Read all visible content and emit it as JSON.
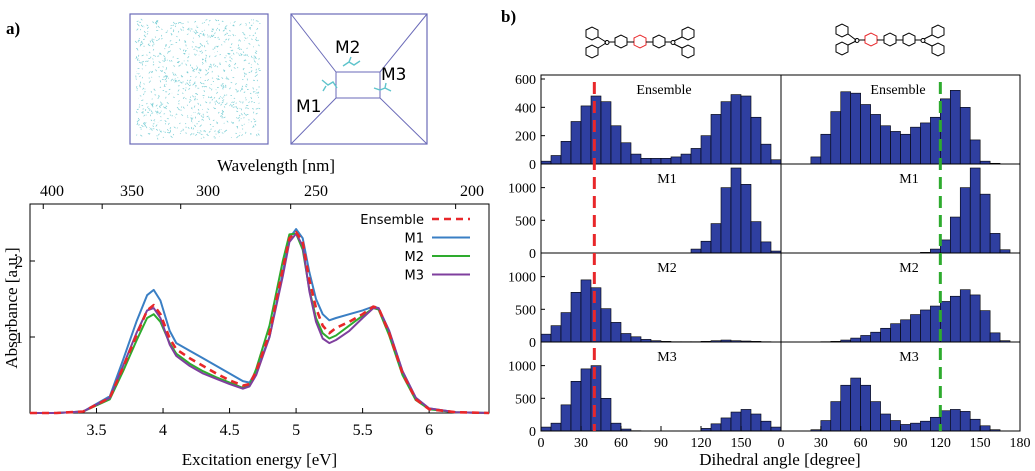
{
  "panel_a": {
    "label": "a)",
    "inset_box_labels": [
      "M1",
      "M2",
      "M3"
    ],
    "top_axis_label": "Wavelength [nm]",
    "top_ticks": [
      "400",
      "350",
      "300",
      "250",
      "200"
    ]
  },
  "panel_b": {
    "label": "b)",
    "xlabel": "Dihedral angle [degree]"
  },
  "colors": {
    "ensemble": "#e8272a",
    "m1": "#3a7fc4",
    "m2": "#2eab2e",
    "m3": "#7f3f9e",
    "bar_fill": "#2f3fa0",
    "bar_edge": "#000000",
    "ref_red": "#e8272a",
    "ref_green": "#2eab2e",
    "cube_dots": "#5fc4cc"
  },
  "chart_data": [
    {
      "type": "line",
      "title": "",
      "xlabel": "Excitation energy [eV]",
      "ylabel": "Absorbance [a.u.]",
      "xlim": [
        3.0,
        6.45
      ],
      "ylim": [
        0,
        2.75
      ],
      "x_ticks": [
        3.5,
        4,
        4.5,
        5,
        5.5,
        6
      ],
      "x_tick_labels": [
        "3.5",
        "4",
        "4.5",
        "5",
        "5.5",
        "6"
      ],
      "y_ticks": [
        1,
        2
      ],
      "y_tick_labels": [
        "1",
        "2"
      ],
      "legend": "top-right",
      "series": [
        {
          "name": "Ensemble",
          "style": "dashed",
          "x": [
            3.0,
            3.2,
            3.4,
            3.6,
            3.7,
            3.8,
            3.88,
            3.93,
            3.98,
            4.05,
            4.1,
            4.2,
            4.3,
            4.4,
            4.5,
            4.6,
            4.65,
            4.7,
            4.8,
            4.9,
            4.95,
            5.0,
            5.05,
            5.1,
            5.15,
            5.2,
            5.25,
            5.3,
            5.4,
            5.5,
            5.58,
            5.62,
            5.7,
            5.8,
            5.9,
            6.0,
            6.2,
            6.45
          ],
          "y": [
            0.0,
            0.0,
            0.02,
            0.2,
            0.6,
            1.02,
            1.35,
            1.42,
            1.3,
            0.98,
            0.84,
            0.72,
            0.62,
            0.52,
            0.43,
            0.36,
            0.38,
            0.55,
            1.05,
            1.9,
            2.3,
            2.38,
            2.25,
            1.75,
            1.38,
            1.15,
            1.05,
            1.12,
            1.2,
            1.3,
            1.4,
            1.38,
            1.05,
            0.52,
            0.18,
            0.05,
            0.01,
            0.0
          ]
        },
        {
          "name": "M1",
          "style": "solid",
          "x": [
            3.0,
            3.2,
            3.4,
            3.6,
            3.7,
            3.8,
            3.88,
            3.93,
            3.98,
            4.05,
            4.1,
            4.2,
            4.3,
            4.4,
            4.5,
            4.6,
            4.65,
            4.7,
            4.8,
            4.9,
            4.95,
            5.0,
            5.05,
            5.1,
            5.15,
            5.2,
            5.25,
            5.3,
            5.4,
            5.5,
            5.58,
            5.62,
            5.7,
            5.8,
            5.9,
            6.0,
            6.2,
            6.45
          ],
          "y": [
            0.0,
            0.0,
            0.02,
            0.22,
            0.7,
            1.2,
            1.55,
            1.62,
            1.48,
            1.08,
            0.92,
            0.82,
            0.72,
            0.62,
            0.52,
            0.42,
            0.4,
            0.55,
            1.0,
            1.85,
            2.3,
            2.42,
            2.3,
            1.85,
            1.5,
            1.3,
            1.22,
            1.25,
            1.3,
            1.35,
            1.4,
            1.38,
            1.08,
            0.55,
            0.2,
            0.06,
            0.01,
            0.0
          ]
        },
        {
          "name": "M2",
          "style": "solid",
          "x": [
            3.0,
            3.2,
            3.4,
            3.6,
            3.7,
            3.8,
            3.88,
            3.93,
            3.98,
            4.05,
            4.1,
            4.2,
            4.3,
            4.4,
            4.5,
            4.6,
            4.65,
            4.7,
            4.8,
            4.9,
            4.95,
            5.0,
            5.05,
            5.1,
            5.15,
            5.2,
            5.25,
            5.3,
            5.4,
            5.5,
            5.58,
            5.62,
            5.7,
            5.8,
            5.9,
            6.0,
            6.2,
            6.45
          ],
          "y": [
            0.0,
            0.0,
            0.02,
            0.18,
            0.55,
            0.95,
            1.25,
            1.3,
            1.2,
            0.92,
            0.78,
            0.65,
            0.55,
            0.47,
            0.4,
            0.33,
            0.36,
            0.58,
            1.15,
            2.0,
            2.35,
            2.36,
            2.15,
            1.62,
            1.25,
            1.05,
            0.98,
            1.02,
            1.15,
            1.28,
            1.38,
            1.36,
            1.02,
            0.5,
            0.17,
            0.05,
            0.01,
            0.0
          ]
        },
        {
          "name": "M3",
          "style": "solid",
          "x": [
            3.0,
            3.2,
            3.4,
            3.6,
            3.7,
            3.8,
            3.88,
            3.93,
            3.98,
            4.05,
            4.1,
            4.2,
            4.3,
            4.4,
            4.5,
            4.6,
            4.65,
            4.7,
            4.8,
            4.9,
            4.95,
            5.0,
            5.05,
            5.1,
            5.15,
            5.2,
            5.25,
            5.3,
            5.4,
            5.5,
            5.58,
            5.62,
            5.7,
            5.8,
            5.9,
            6.0,
            6.2,
            6.45
          ],
          "y": [
            0.0,
            0.0,
            0.02,
            0.2,
            0.62,
            1.05,
            1.35,
            1.38,
            1.25,
            0.9,
            0.75,
            0.62,
            0.52,
            0.45,
            0.38,
            0.32,
            0.35,
            0.5,
            1.0,
            1.8,
            2.25,
            2.36,
            2.2,
            1.6,
            1.2,
            0.98,
            0.92,
            0.96,
            1.08,
            1.25,
            1.38,
            1.38,
            1.08,
            0.55,
            0.2,
            0.06,
            0.01,
            0.0
          ]
        }
      ]
    },
    {
      "type": "bar",
      "title": "",
      "xlabel": "Dihedral angle [degree]",
      "ylabel": "",
      "bin_edges": [
        0,
        7.5,
        15,
        22.5,
        30,
        37.5,
        45,
        52.5,
        60,
        67.5,
        75,
        82.5,
        90,
        97.5,
        105,
        112.5,
        120,
        127.5,
        135,
        142.5,
        150,
        157.5,
        165,
        172.5,
        180
      ],
      "xlim": [
        0,
        180
      ],
      "x_ticks": [
        0,
        30,
        60,
        90,
        120,
        150
      ],
      "x_tick_labels": [
        "0",
        "30",
        "60",
        "90",
        "120",
        "150"
      ],
      "ref_line_x": 40,
      "rows": [
        {
          "label": "Ensemble",
          "ylim": [
            0,
            600
          ],
          "y_ticks": [
            0,
            200,
            400,
            600
          ],
          "y_tick_labels": [
            "0",
            "200",
            "400",
            "600"
          ],
          "values": [
            20,
            60,
            160,
            300,
            410,
            480,
            440,
            270,
            150,
            70,
            40,
            40,
            40,
            50,
            70,
            110,
            200,
            350,
            440,
            490,
            480,
            330,
            140,
            30
          ]
        },
        {
          "label": "M1",
          "ylim": [
            0,
            1300
          ],
          "y_ticks": [
            0,
            500,
            1000
          ],
          "y_tick_labels": [
            "0",
            "500",
            "1000"
          ],
          "values": [
            0,
            0,
            0,
            0,
            0,
            0,
            0,
            0,
            0,
            0,
            0,
            0,
            0,
            0,
            0,
            60,
            180,
            450,
            1000,
            1300,
            1050,
            480,
            170,
            30
          ]
        },
        {
          "label": "M2",
          "ylim": [
            0,
            1300
          ],
          "y_ticks": [
            0,
            500,
            1000
          ],
          "y_tick_labels": [
            "0",
            "500",
            "1000"
          ],
          "values": [
            120,
            250,
            450,
            760,
            950,
            830,
            510,
            300,
            130,
            80,
            40,
            20,
            10,
            5,
            5,
            5,
            10,
            20,
            30,
            20,
            15,
            10,
            5,
            0
          ]
        },
        {
          "label": "M3",
          "ylim": [
            0,
            1300
          ],
          "y_ticks": [
            0,
            500,
            1000
          ],
          "y_tick_labels": [
            "0",
            "500",
            "1000"
          ],
          "values": [
            60,
            120,
            400,
            760,
            950,
            1000,
            500,
            120,
            30,
            5,
            0,
            0,
            0,
            0,
            0,
            0,
            40,
            110,
            200,
            290,
            330,
            260,
            150,
            60
          ]
        }
      ]
    },
    {
      "type": "bar",
      "title": "",
      "xlabel": "Dihedral angle [degree]",
      "ylabel": "",
      "bin_edges": [
        0,
        7.5,
        15,
        22.5,
        30,
        37.5,
        45,
        52.5,
        60,
        67.5,
        75,
        82.5,
        90,
        97.5,
        105,
        112.5,
        120,
        127.5,
        135,
        142.5,
        150,
        157.5,
        165,
        172.5,
        180
      ],
      "xlim": [
        0,
        180
      ],
      "x_ticks": [
        0,
        30,
        60,
        90,
        120,
        150,
        180
      ],
      "x_tick_labels": [
        "0",
        "30",
        "60",
        "90",
        "120",
        "150",
        "180"
      ],
      "ref_line_x": 120,
      "rows": [
        {
          "label": "Ensemble",
          "ylim": [
            0,
            600
          ],
          "values": [
            0,
            0,
            0,
            50,
            210,
            370,
            510,
            500,
            420,
            350,
            270,
            230,
            210,
            260,
            290,
            330,
            460,
            520,
            400,
            170,
            20,
            5,
            0,
            0
          ]
        },
        {
          "label": "M1",
          "ylim": [
            0,
            1300
          ],
          "values": [
            0,
            0,
            0,
            0,
            0,
            0,
            0,
            0,
            0,
            0,
            0,
            0,
            0,
            0,
            10,
            60,
            200,
            550,
            1000,
            1300,
            900,
            300,
            50,
            0
          ]
        },
        {
          "label": "M2",
          "ylim": [
            0,
            1300
          ],
          "values": [
            0,
            0,
            0,
            0,
            5,
            10,
            30,
            60,
            100,
            150,
            210,
            280,
            340,
            420,
            490,
            550,
            620,
            700,
            800,
            720,
            480,
            140,
            20,
            0
          ]
        },
        {
          "label": "M3",
          "ylim": [
            0,
            1300
          ],
          "values": [
            0,
            0,
            0,
            20,
            160,
            450,
            700,
            810,
            700,
            450,
            260,
            160,
            100,
            120,
            150,
            210,
            310,
            330,
            300,
            180,
            80,
            20,
            0,
            0
          ]
        }
      ]
    }
  ]
}
